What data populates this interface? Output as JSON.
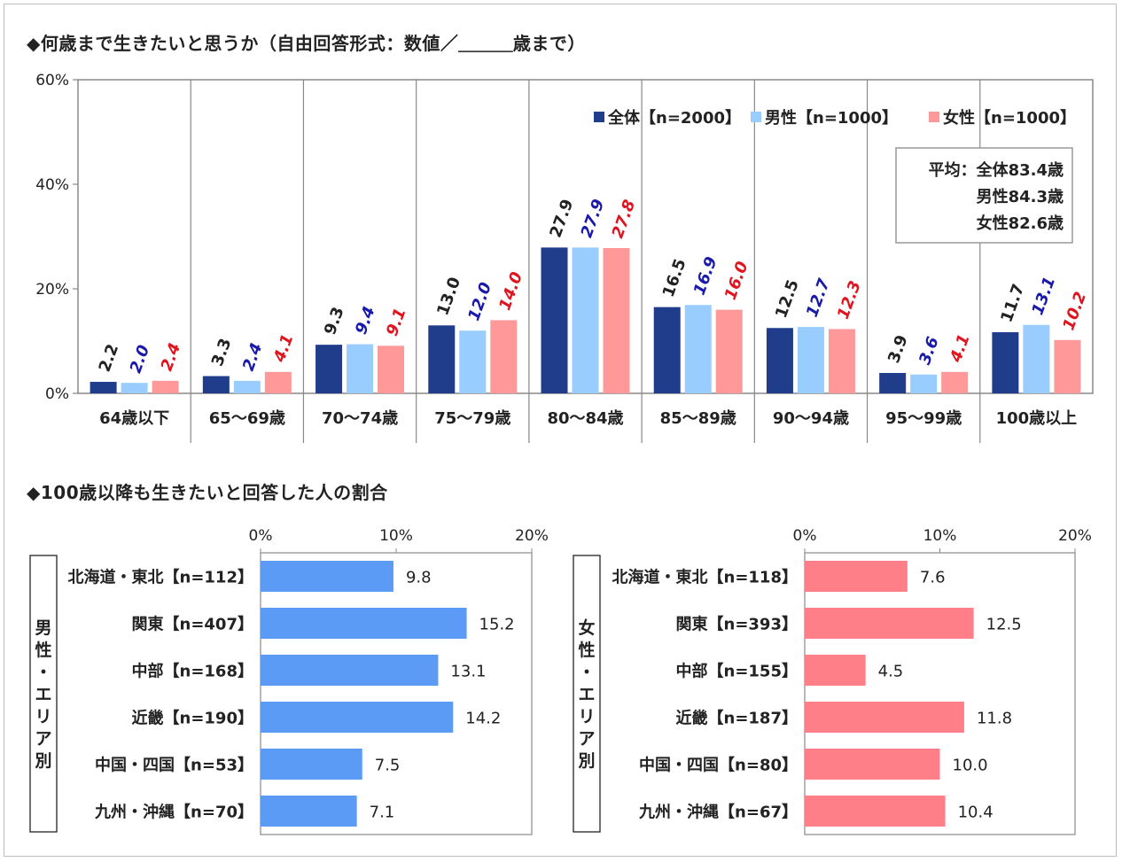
{
  "titles": {
    "top": "◆何歳まで生きたいと思うか（自由回答形式：数値／＿＿＿歳まで）",
    "bottom": "◆100歳以降も生きたいと回答した人の割合"
  },
  "colors": {
    "all": "#1f3d8a",
    "male": "#99ccff",
    "female": "#ff9999",
    "male_bar": "#5b9bf5",
    "female_bar": "#ff7f88",
    "male_text": "#1a1aaa",
    "female_text": "#e0141e",
    "all_text": "#222222"
  },
  "note": {
    "lines": [
      "平均：全体83.4歳",
      "男性84.3歳",
      "女性82.6歳"
    ]
  },
  "chart_data": [
    {
      "type": "bar",
      "categories": [
        "64歳以下",
        "65～69歳",
        "70～74歳",
        "75～79歳",
        "80～84歳",
        "85～89歳",
        "90～94歳",
        "95～99歳",
        "100歳以上"
      ],
      "series": [
        {
          "name": "全体【n=2000】",
          "values": [
            2.2,
            3.3,
            9.3,
            13.0,
            27.9,
            16.5,
            12.5,
            3.9,
            11.7
          ]
        },
        {
          "name": "男性【n=1000】",
          "values": [
            2.0,
            2.4,
            9.4,
            12.0,
            27.9,
            16.9,
            12.7,
            3.6,
            13.1
          ]
        },
        {
          "name": "女性【n=1000】",
          "values": [
            2.4,
            4.1,
            9.1,
            14.0,
            27.8,
            16.0,
            12.3,
            4.1,
            10.2
          ]
        }
      ],
      "value_labels": [
        [
          "2.2",
          "3.3",
          "9.3",
          "13.0",
          "27.9",
          "16.5",
          "12.5",
          "3.9",
          "11.7"
        ],
        [
          "2.0",
          "2.4",
          "9.4",
          "12.0",
          "27.9",
          "16.9",
          "12.7",
          "3.6",
          "13.1"
        ],
        [
          "2.4",
          "4.1",
          "9.1",
          "14.0",
          "27.8",
          "16.0",
          "12.3",
          "4.1",
          "10.2"
        ]
      ],
      "yticks": [
        "0%",
        "20%",
        "40%",
        "60%"
      ],
      "ylim": [
        0,
        60
      ],
      "legend": "top-right",
      "grid": false
    },
    {
      "type": "bar",
      "orientation": "horizontal",
      "side_label": "男性・エリア別",
      "categories": [
        "北海道・東北【n=112】",
        "関東【n=407】",
        "中部【n=168】",
        "近畿【n=190】",
        "中国・四国【n=53】",
        "九州・沖縄【n=70】"
      ],
      "values": [
        9.8,
        15.2,
        13.1,
        14.2,
        7.5,
        7.1
      ],
      "value_labels": [
        "9.8",
        "15.2",
        "13.1",
        "14.2",
        "7.5",
        "7.1"
      ],
      "xticks": [
        "0%",
        "10%",
        "20%"
      ],
      "xlim": [
        0,
        20
      ]
    },
    {
      "type": "bar",
      "orientation": "horizontal",
      "side_label": "女性・エリア別",
      "categories": [
        "北海道・東北【n=118】",
        "関東【n=393】",
        "中部【n=155】",
        "近畿【n=187】",
        "中国・四国【n=80】",
        "九州・沖縄【n=67】"
      ],
      "values": [
        7.6,
        12.5,
        4.5,
        11.8,
        10.0,
        10.4
      ],
      "value_labels": [
        "7.6",
        "12.5",
        "4.5",
        "11.8",
        "10.0",
        "10.4"
      ],
      "xticks": [
        "0%",
        "10%",
        "20%"
      ],
      "xlim": [
        0,
        20
      ]
    }
  ]
}
